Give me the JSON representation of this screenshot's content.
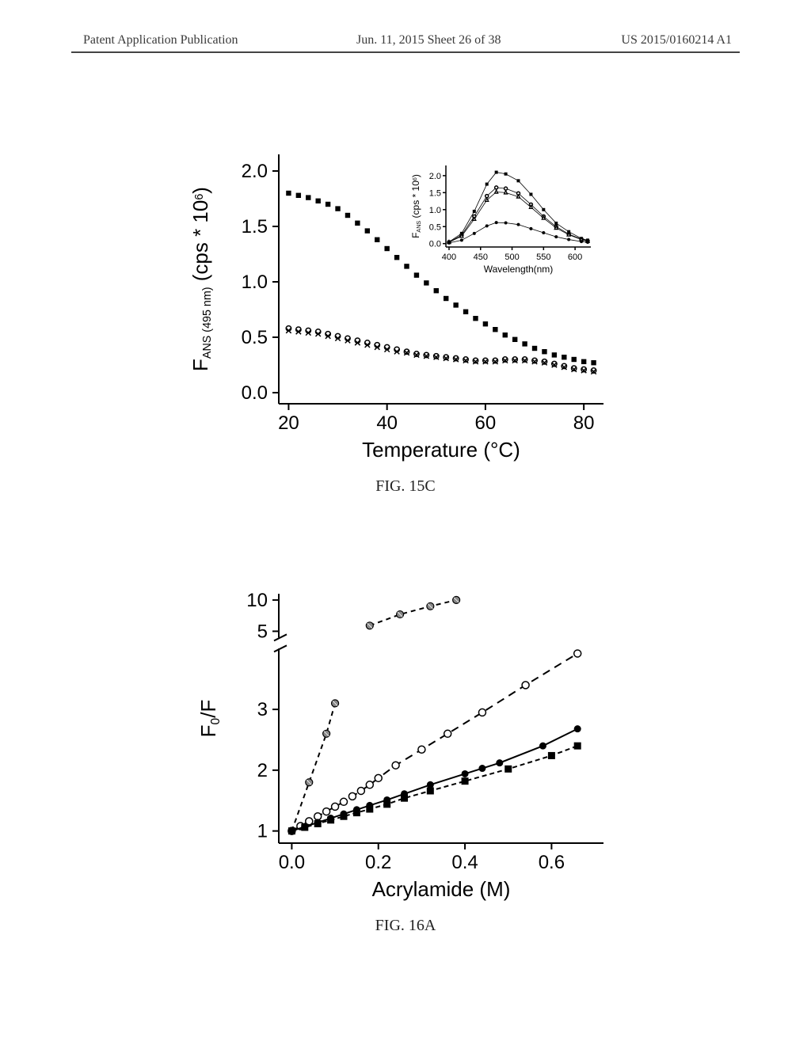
{
  "header": {
    "left": "Patent Application Publication",
    "center": "Jun. 11, 2015  Sheet 26 of 38",
    "right": "US 2015/0160214 A1"
  },
  "fig15c": {
    "type": "line",
    "caption": "FIG. 15C",
    "xlabel": "Temperature (°C)",
    "ylabel_prefix": "F",
    "ylabel_sub": "ANS (495 nm)",
    "ylabel_suffix": " (cps * 10",
    "ylabel_sup": "6",
    "ylabel_close": ")",
    "xlim": [
      18,
      84
    ],
    "ylim": [
      -0.1,
      2.15
    ],
    "xticks": [
      20,
      40,
      60,
      80
    ],
    "yticks": [
      0.0,
      0.5,
      1.0,
      1.5,
      2.0
    ],
    "ytick_labels": [
      "0.0",
      "0.5",
      "1.0",
      "1.5",
      "2.0"
    ],
    "axis_fontsize": 26,
    "tick_fontsize": 24,
    "axis_color": "#000000",
    "background_color": "#ffffff",
    "series": [
      {
        "name": "upper",
        "marker": "filled-square",
        "color": "#000000",
        "x": [
          20,
          22,
          24,
          26,
          28,
          30,
          32,
          34,
          36,
          38,
          40,
          42,
          44,
          46,
          48,
          50,
          52,
          54,
          56,
          58,
          60,
          62,
          64,
          66,
          68,
          70,
          72,
          74,
          76,
          78,
          80,
          82
        ],
        "y": [
          1.8,
          1.78,
          1.76,
          1.73,
          1.7,
          1.66,
          1.6,
          1.53,
          1.46,
          1.38,
          1.3,
          1.22,
          1.14,
          1.06,
          0.99,
          0.92,
          0.85,
          0.79,
          0.73,
          0.67,
          0.62,
          0.57,
          0.52,
          0.48,
          0.44,
          0.4,
          0.37,
          0.34,
          0.32,
          0.3,
          0.28,
          0.27
        ]
      },
      {
        "name": "lower1",
        "marker": "open-circle",
        "color": "#000000",
        "x": [
          20,
          22,
          24,
          26,
          28,
          30,
          32,
          34,
          36,
          38,
          40,
          42,
          44,
          46,
          48,
          50,
          52,
          54,
          56,
          58,
          60,
          62,
          64,
          66,
          68,
          70,
          72,
          74,
          76,
          78,
          80,
          82
        ],
        "y": [
          0.58,
          0.57,
          0.56,
          0.55,
          0.53,
          0.51,
          0.49,
          0.47,
          0.45,
          0.43,
          0.41,
          0.39,
          0.37,
          0.35,
          0.34,
          0.33,
          0.32,
          0.31,
          0.3,
          0.29,
          0.29,
          0.29,
          0.3,
          0.3,
          0.3,
          0.29,
          0.28,
          0.26,
          0.24,
          0.22,
          0.21,
          0.2
        ]
      },
      {
        "name": "lower2",
        "marker": "x",
        "color": "#000000",
        "x": [
          20,
          22,
          24,
          26,
          28,
          30,
          32,
          34,
          36,
          38,
          40,
          42,
          44,
          46,
          48,
          50,
          52,
          54,
          56,
          58,
          60,
          62,
          64,
          66,
          68,
          70,
          72,
          74,
          76,
          78,
          80,
          82
        ],
        "y": [
          0.56,
          0.55,
          0.54,
          0.53,
          0.51,
          0.49,
          0.47,
          0.45,
          0.43,
          0.41,
          0.39,
          0.37,
          0.36,
          0.34,
          0.33,
          0.32,
          0.31,
          0.3,
          0.29,
          0.28,
          0.28,
          0.28,
          0.29,
          0.29,
          0.29,
          0.28,
          0.27,
          0.25,
          0.23,
          0.21,
          0.2,
          0.19
        ]
      }
    ],
    "inset": {
      "type": "line",
      "xlabel": "Wavelength(nm)",
      "ylabel_prefix": "F",
      "ylabel_sub": "ANS",
      "ylabel_suffix": " (cps * 10",
      "ylabel_sup": "6",
      "ylabel_close": ")",
      "xlim": [
        395,
        625
      ],
      "ylim": [
        -0.1,
        2.3
      ],
      "xticks": [
        400,
        450,
        500,
        550,
        600
      ],
      "yticks": [
        0.0,
        0.5,
        1.0,
        1.5,
        2.0
      ],
      "ytick_labels": [
        "0.0",
        "0.5",
        "1.0",
        "1.5",
        "2.0"
      ],
      "tick_fontsize": 11,
      "axis_fontsize": 12,
      "series": [
        {
          "name": "s1",
          "marker": "filled-square",
          "color": "#000000",
          "x": [
            400,
            420,
            440,
            460,
            475,
            490,
            510,
            530,
            550,
            570,
            590,
            610,
            620
          ],
          "y": [
            0.05,
            0.3,
            0.95,
            1.75,
            2.1,
            2.05,
            1.85,
            1.45,
            1.0,
            0.6,
            0.35,
            0.15,
            0.1
          ]
        },
        {
          "name": "s2",
          "marker": "open-circle",
          "color": "#000000",
          "x": [
            400,
            420,
            440,
            460,
            475,
            490,
            510,
            530,
            550,
            570,
            590,
            610,
            620
          ],
          "y": [
            0.04,
            0.25,
            0.8,
            1.4,
            1.65,
            1.62,
            1.48,
            1.15,
            0.8,
            0.5,
            0.28,
            0.13,
            0.08
          ]
        },
        {
          "name": "s3",
          "marker": "open-triangle",
          "color": "#000000",
          "x": [
            400,
            420,
            440,
            460,
            475,
            490,
            510,
            530,
            550,
            570,
            590,
            610,
            620
          ],
          "y": [
            0.04,
            0.22,
            0.72,
            1.28,
            1.52,
            1.5,
            1.38,
            1.07,
            0.75,
            0.46,
            0.26,
            0.12,
            0.07
          ]
        },
        {
          "name": "s4",
          "marker": "filled-circle",
          "color": "#000000",
          "x": [
            400,
            420,
            440,
            460,
            475,
            490,
            510,
            530,
            550,
            570,
            590,
            610,
            620
          ],
          "y": [
            0.02,
            0.1,
            0.3,
            0.52,
            0.62,
            0.61,
            0.56,
            0.44,
            0.32,
            0.2,
            0.12,
            0.06,
            0.04
          ]
        }
      ]
    }
  },
  "fig16a": {
    "type": "scatter-line",
    "caption": "FIG. 16A",
    "xlabel": "Acrylamide (M)",
    "ylabel_prefix": "F",
    "ylabel_sub": "0",
    "ylabel_suffix": "/F",
    "xlim": [
      -0.03,
      0.72
    ],
    "xticks": [
      0.0,
      0.2,
      0.4,
      0.6
    ],
    "xtick_labels": [
      "0.0",
      "0.2",
      "0.4",
      "0.6"
    ],
    "axis_fontsize": 26,
    "tick_fontsize": 24,
    "axis_color": "#000000",
    "y_lower": {
      "lim": [
        0.8,
        4.0
      ],
      "ticks": [
        1,
        2,
        3
      ],
      "labels": [
        "1",
        "2",
        "3"
      ]
    },
    "y_upper": {
      "lim": [
        4.0,
        11.0
      ],
      "ticks": [
        5,
        10
      ],
      "labels": [
        "5",
        "10"
      ]
    },
    "break_gap": 14,
    "series": [
      {
        "name": "high",
        "marker": "hatched-circle",
        "color": "#000000",
        "dash": "6,5",
        "line_width": 2,
        "x": [
          0.0,
          0.04,
          0.08,
          0.1,
          0.18,
          0.25,
          0.32,
          0.38
        ],
        "y": [
          1.0,
          1.8,
          2.6,
          3.1,
          5.9,
          7.7,
          9.0,
          10.0
        ]
      },
      {
        "name": "open",
        "marker": "open-circle",
        "color": "#000000",
        "dash": "10,7",
        "line_width": 2,
        "x": [
          0.0,
          0.02,
          0.04,
          0.06,
          0.08,
          0.1,
          0.12,
          0.14,
          0.16,
          0.18,
          0.2,
          0.24,
          0.3,
          0.36,
          0.44,
          0.54,
          0.66
        ],
        "y": [
          1.0,
          1.08,
          1.16,
          1.24,
          1.32,
          1.4,
          1.48,
          1.57,
          1.66,
          1.76,
          1.87,
          2.08,
          2.34,
          2.6,
          2.95,
          3.4,
          3.92
        ]
      },
      {
        "name": "filled-circle",
        "marker": "filled-circle",
        "color": "#000000",
        "dash": "",
        "line_width": 2,
        "x": [
          0.0,
          0.03,
          0.06,
          0.09,
          0.12,
          0.15,
          0.18,
          0.22,
          0.26,
          0.32,
          0.4,
          0.44,
          0.48,
          0.58,
          0.66
        ],
        "y": [
          1.0,
          1.07,
          1.14,
          1.21,
          1.28,
          1.35,
          1.42,
          1.51,
          1.61,
          1.76,
          1.94,
          2.03,
          2.12,
          2.4,
          2.68
        ]
      },
      {
        "name": "filled-square",
        "marker": "filled-square",
        "color": "#000000",
        "dash": "6,4",
        "line_width": 2,
        "x": [
          0.0,
          0.03,
          0.06,
          0.09,
          0.12,
          0.15,
          0.18,
          0.22,
          0.26,
          0.32,
          0.4,
          0.5,
          0.6,
          0.66
        ],
        "y": [
          1.0,
          1.06,
          1.12,
          1.18,
          1.24,
          1.3,
          1.36,
          1.44,
          1.54,
          1.66,
          1.82,
          2.02,
          2.24,
          2.4
        ]
      }
    ]
  }
}
